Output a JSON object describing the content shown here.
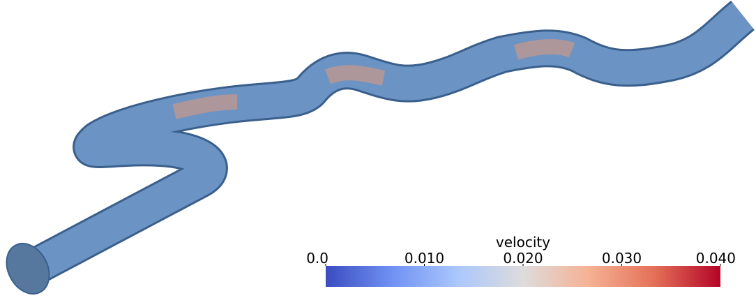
{
  "colorbar": {
    "title": "velocity",
    "lim": [
      0,
      0.04
    ],
    "ticks": [
      {
        "value": 0,
        "label": "0.0"
      },
      {
        "value": 0.01,
        "label": "0.010"
      },
      {
        "value": 0.02,
        "label": "0.020"
      },
      {
        "value": 0.03,
        "label": "0.030"
      },
      {
        "value": 0.04,
        "label": "0.040"
      }
    ],
    "colors": [
      "#3b4cc0",
      "#6f91f2",
      "#aac7fd",
      "#dddcdc",
      "#f6b194",
      "#e47058",
      "#b40426"
    ]
  }
}
